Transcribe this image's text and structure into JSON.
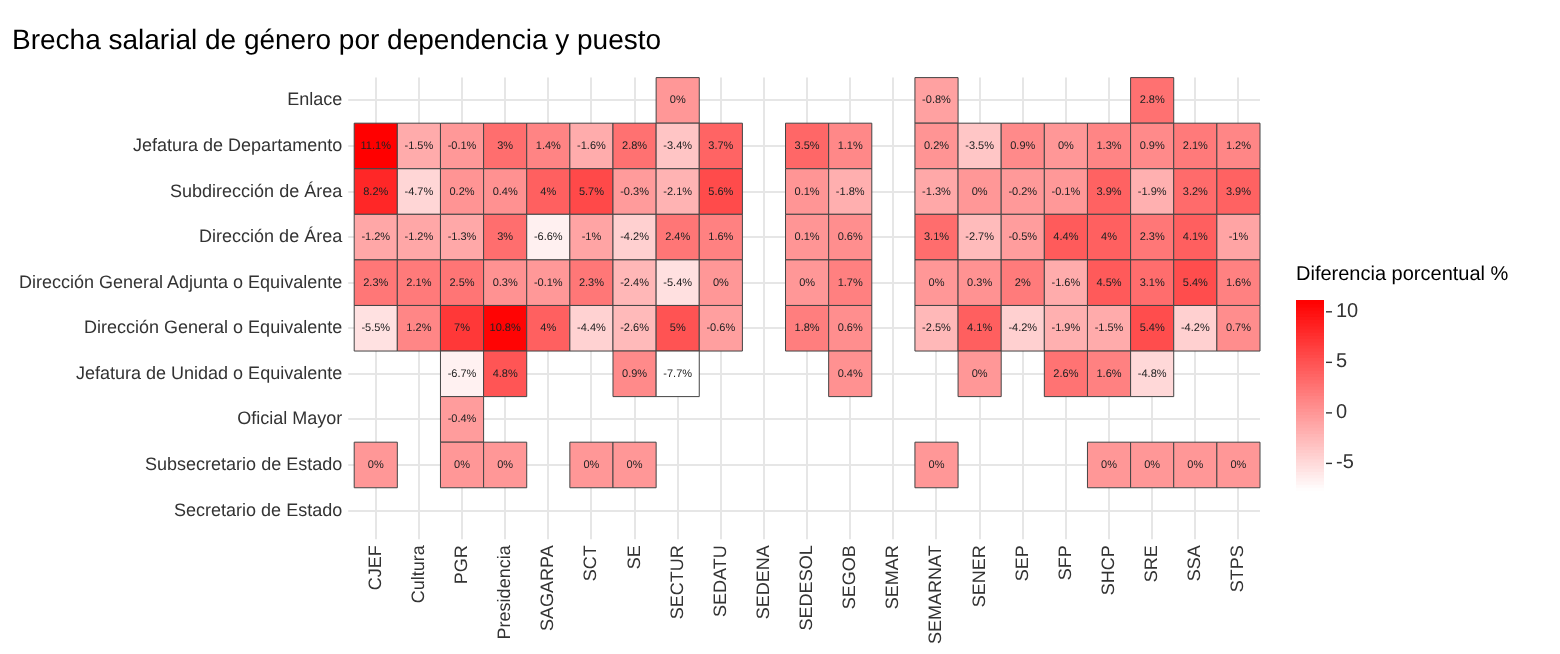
{
  "chart_data": {
    "type": "heatmap",
    "title": "Brecha salarial de género por dependencia y puesto",
    "clabel": "Diferencia porcentual %",
    "categories": [
      "CJEF",
      "Cultura",
      "PGR",
      "Presidencia",
      "SAGARPA",
      "SCT",
      "SE",
      "SECTUR",
      "SEDATU",
      "SEDENA",
      "SEDESOL",
      "SEGOB",
      "SEMAR",
      "SEMARNAT",
      "SENER",
      "SEP",
      "SFP",
      "SHCP",
      "SRE",
      "SSA",
      "STPS"
    ],
    "y_categories": [
      "Enlace",
      "Jefatura de Departamento",
      "Subdirección de Área",
      "Dirección de Área",
      "Dirección General Adjunta o Equivalente",
      "Dirección General o Equivalente",
      "Jefatura de Unidad o Equivalente",
      "Oficial Mayor",
      "Subsecretario de Estado",
      "Secretario de Estado"
    ],
    "cells": [
      [
        null,
        null,
        null,
        null,
        null,
        null,
        null,
        0,
        null,
        null,
        null,
        null,
        null,
        -0.8,
        null,
        null,
        null,
        null,
        2.8,
        null,
        null
      ],
      [
        11.1,
        -1.5,
        -0.1,
        3,
        1.4,
        -1.6,
        2.8,
        -3.4,
        3.7,
        null,
        3.5,
        1.1,
        null,
        0.2,
        -3.5,
        0.9,
        0,
        1.3,
        0.9,
        2.1,
        1.2
      ],
      [
        8.2,
        -4.7,
        0.2,
        0.4,
        4,
        5.7,
        -0.3,
        -2.1,
        5.6,
        null,
        0.1,
        -1.8,
        null,
        -1.3,
        0,
        -0.2,
        -0.1,
        3.9,
        -1.9,
        3.2,
        3.9
      ],
      [
        -1.2,
        -1.2,
        -1.3,
        3,
        -6.6,
        -1,
        -4.2,
        2.4,
        1.6,
        null,
        0.1,
        0.6,
        null,
        3.1,
        -2.7,
        -0.5,
        4.4,
        4,
        2.3,
        4.1,
        -1
      ],
      [
        2.3,
        2.1,
        2.5,
        0.3,
        -0.1,
        2.3,
        -2.4,
        -5.4,
        0,
        null,
        0,
        1.7,
        null,
        0,
        0.3,
        2,
        -1.6,
        4.5,
        3.1,
        5.4,
        1.6
      ],
      [
        -5.5,
        1.2,
        7,
        10.8,
        4,
        -4.4,
        -2.6,
        5,
        -0.6,
        null,
        1.8,
        0.6,
        null,
        -2.5,
        4.1,
        -4.2,
        -1.9,
        -1.5,
        5.4,
        -4.2,
        0.7
      ],
      [
        null,
        null,
        -6.7,
        4.8,
        null,
        null,
        0.9,
        -7.7,
        null,
        null,
        null,
        0.4,
        null,
        null,
        0,
        null,
        2.6,
        1.6,
        -4.8,
        null,
        null
      ],
      [
        null,
        null,
        -0.4,
        null,
        null,
        null,
        null,
        null,
        null,
        null,
        null,
        null,
        null,
        null,
        null,
        null,
        null,
        null,
        null,
        null,
        null
      ],
      [
        0,
        null,
        0,
        0,
        null,
        0,
        0,
        null,
        null,
        null,
        null,
        null,
        null,
        0,
        null,
        null,
        null,
        0,
        0,
        0,
        0
      ],
      [
        null,
        null,
        null,
        null,
        null,
        null,
        null,
        null,
        null,
        null,
        null,
        null,
        null,
        null,
        null,
        null,
        null,
        null,
        null,
        null,
        null
      ]
    ],
    "cell_labels": [
      [
        null,
        null,
        null,
        null,
        null,
        null,
        null,
        "0%",
        null,
        null,
        null,
        null,
        null,
        "-0.8%",
        null,
        null,
        null,
        null,
        "2.8%",
        null,
        null
      ],
      [
        "11.1%",
        "-1.5%",
        "-0.1%",
        "3%",
        "1.4%",
        "-1.6%",
        "2.8%",
        "-3.4%",
        "3.7%",
        null,
        "3.5%",
        "1.1%",
        null,
        "0.2%",
        "-3.5%",
        "0.9%",
        "0%",
        "1.3%",
        "0.9%",
        "2.1%",
        "1.2%"
      ],
      [
        "8.2%",
        "-4.7%",
        "0.2%",
        "0.4%",
        "4%",
        "5.7%",
        "-0.3%",
        "-2.1%",
        "5.6%",
        null,
        "0.1%",
        "-1.8%",
        null,
        "-1.3%",
        "0%",
        "-0.2%",
        "-0.1%",
        "3.9%",
        "-1.9%",
        "3.2%",
        "3.9%"
      ],
      [
        "-1.2%",
        "-1.2%",
        "-1.3%",
        "3%",
        "-6.6%",
        "-1%",
        "-4.2%",
        "2.4%",
        "1.6%",
        null,
        "0.1%",
        "0.6%",
        null,
        "3.1%",
        "-2.7%",
        "-0.5%",
        "4.4%",
        "4%",
        "2.3%",
        "4.1%",
        "-1%"
      ],
      [
        "2.3%",
        "2.1%",
        "2.5%",
        "0.3%",
        "-0.1%",
        "2.3%",
        "-2.4%",
        "-5.4%",
        "0%",
        null,
        "0%",
        "1.7%",
        null,
        "0%",
        "0.3%",
        "2%",
        "-1.6%",
        "4.5%",
        "3.1%",
        "5.4%",
        "1.6%"
      ],
      [
        "-5.5%",
        "1.2%",
        "7%",
        "10.8%",
        "4%",
        "-4.4%",
        "-2.6%",
        "5%",
        "-0.6%",
        null,
        "1.8%",
        "0.6%",
        null,
        "-2.5%",
        "4.1%",
        "-4.2%",
        "-1.9%",
        "-1.5%",
        "5.4%",
        "-4.2%",
        "0.7%"
      ],
      [
        null,
        null,
        "-6.7%",
        "4.8%",
        null,
        null,
        "0.9%",
        "-7.7%",
        null,
        null,
        null,
        "0.4%",
        null,
        null,
        "0%",
        null,
        "2.6%",
        "1.6%",
        "-4.8%",
        null,
        null
      ],
      [
        null,
        null,
        "-0.4%",
        null,
        null,
        null,
        null,
        null,
        null,
        null,
        null,
        null,
        null,
        null,
        null,
        null,
        null,
        null,
        null,
        null,
        null
      ],
      [
        "0%",
        null,
        "0%",
        "0%",
        null,
        "0%",
        "0%",
        null,
        null,
        null,
        null,
        null,
        null,
        "0%",
        null,
        null,
        null,
        "0%",
        "0%",
        "0%",
        "0%"
      ],
      [
        null,
        null,
        null,
        null,
        null,
        null,
        null,
        null,
        null,
        null,
        null,
        null,
        null,
        null,
        null,
        null,
        null,
        null,
        null,
        null,
        null
      ]
    ],
    "clim": [
      -7.7,
      11.1
    ],
    "cticks": [
      -5,
      0,
      5,
      10
    ],
    "grid": true
  }
}
